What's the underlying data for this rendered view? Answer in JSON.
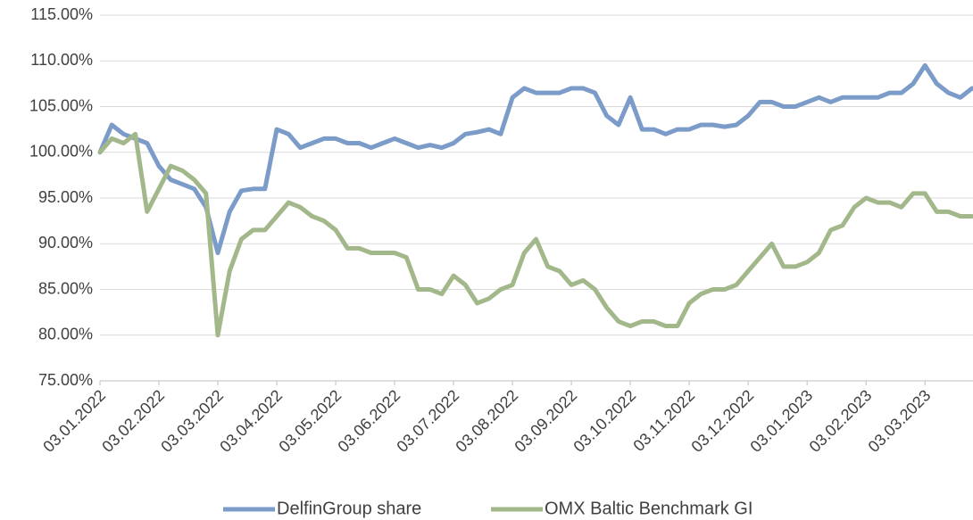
{
  "chart_data": {
    "type": "line",
    "categories": [
      "03.01.2022",
      null,
      null,
      null,
      null,
      "03.02.2022",
      null,
      null,
      null,
      null,
      "03.03.2022",
      null,
      null,
      null,
      null,
      "03.04.2022",
      null,
      null,
      null,
      null,
      "03.05.2022",
      null,
      null,
      null,
      null,
      "03.06.2022",
      null,
      null,
      null,
      null,
      "03.07.2022",
      null,
      null,
      null,
      null,
      "03.08.2022",
      null,
      null,
      null,
      null,
      "03.09.2022",
      null,
      null,
      null,
      null,
      "03.10.2022",
      null,
      null,
      null,
      null,
      "03.11.2022",
      null,
      null,
      null,
      null,
      "03.12.2022",
      null,
      null,
      null,
      null,
      "03.01.2023",
      null,
      null,
      null,
      null,
      "03.02.2023",
      null,
      null,
      null,
      null,
      "03.03.2023",
      null,
      null,
      null,
      null
    ],
    "series": [
      {
        "name": "DelfinGroup share",
        "color": "#7b9bc8",
        "values": [
          100,
          103,
          102,
          101.5,
          101,
          98.5,
          97,
          96.5,
          96,
          94,
          89,
          93.5,
          95.8,
          96,
          96,
          102.5,
          102,
          100.5,
          101,
          101.5,
          101.5,
          101,
          101,
          100.5,
          101,
          101.5,
          101,
          100.5,
          100.8,
          100.5,
          101,
          102,
          102.2,
          102.5,
          102,
          106,
          107,
          106.5,
          106.5,
          106.5,
          107,
          107,
          106.5,
          104,
          103,
          106,
          102.5,
          102.5,
          102,
          102.5,
          102.5,
          103,
          103,
          102.8,
          103,
          104,
          105.5,
          105.5,
          105,
          105,
          105.5,
          106,
          105.5,
          106,
          106,
          106,
          106,
          106.5,
          106.5,
          107.5,
          109.5,
          107.5,
          106.5,
          106,
          107
        ]
      },
      {
        "name": "OMX Baltic Benchmark GI",
        "color": "#a3b88a",
        "values": [
          100,
          101.5,
          101,
          102,
          93.5,
          96,
          98.5,
          98,
          97,
          95.5,
          80,
          87,
          90.5,
          91.5,
          91.5,
          93,
          94.5,
          94,
          93,
          92.5,
          91.5,
          89.5,
          89.5,
          89,
          89,
          89,
          88.5,
          85,
          85,
          84.5,
          86.5,
          85.5,
          83.5,
          84,
          85,
          85.5,
          89,
          90.5,
          87.5,
          87,
          85.5,
          86,
          85,
          83,
          81.5,
          81,
          81.5,
          81.5,
          81,
          81,
          83.5,
          84.5,
          85,
          85,
          85.5,
          87,
          88.5,
          90,
          87.5,
          87.5,
          88,
          89,
          91.5,
          92,
          94,
          95,
          94.5,
          94.5,
          94,
          95.5,
          95.5,
          93.5,
          93.5,
          93,
          93
        ]
      }
    ],
    "ylim": [
      75,
      115
    ],
    "yticks": [
      {
        "value": 75,
        "label": "75.00%"
      },
      {
        "value": 80,
        "label": "80.00%"
      },
      {
        "value": 85,
        "label": "85.00%"
      },
      {
        "value": 90,
        "label": "90.00%"
      },
      {
        "value": 95,
        "label": "95.00%"
      },
      {
        "value": 100,
        "label": "100.00%"
      },
      {
        "value": 105,
        "label": "105.00%"
      },
      {
        "value": 110,
        "label": "110.00%"
      },
      {
        "value": 115,
        "label": "115.00%"
      }
    ],
    "grid": true,
    "legend": "bottom"
  }
}
